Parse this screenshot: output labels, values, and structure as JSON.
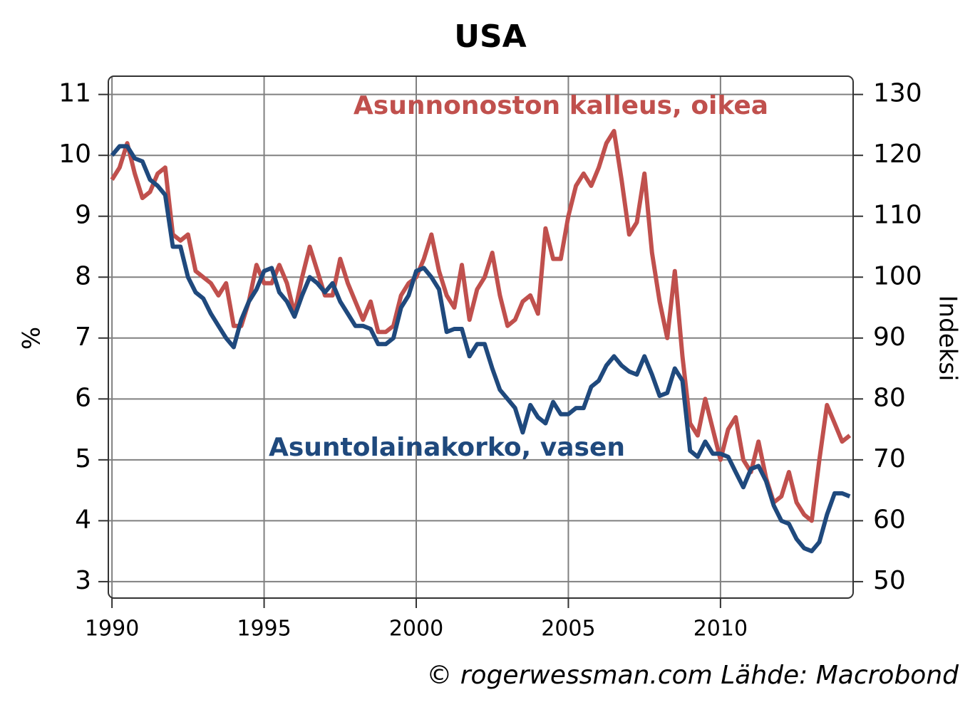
{
  "chart_data": {
    "type": "line",
    "title": "USA",
    "ylabel": "%",
    "y2label": "Indeksi",
    "source": "© rogerwessman.com Lähde: Macrobond",
    "x": [
      1990,
      1990.25,
      1990.5,
      1990.75,
      1991,
      1991.25,
      1991.5,
      1991.75,
      1992,
      1992.25,
      1992.5,
      1992.75,
      1993,
      1993.25,
      1993.5,
      1993.75,
      1994,
      1994.25,
      1994.5,
      1994.75,
      1995,
      1995.25,
      1995.5,
      1995.75,
      1996,
      1996.25,
      1996.5,
      1996.75,
      1997,
      1997.25,
      1997.5,
      1997.75,
      1998,
      1998.25,
      1998.5,
      1998.75,
      1999,
      1999.25,
      1999.5,
      1999.75,
      2000,
      2000.25,
      2000.5,
      2000.75,
      2001,
      2001.25,
      2001.5,
      2001.75,
      2002,
      2002.25,
      2002.5,
      2002.75,
      2003,
      2003.25,
      2003.5,
      2003.75,
      2004,
      2004.25,
      2004.5,
      2004.75,
      2005,
      2005.25,
      2005.5,
      2005.75,
      2006,
      2006.25,
      2006.5,
      2006.75,
      2007,
      2007.25,
      2007.5,
      2007.75,
      2008,
      2008.25,
      2008.5,
      2008.75,
      2009,
      2009.25,
      2009.5,
      2009.75,
      2010,
      2010.25,
      2010.5,
      2010.75,
      2011,
      2011.25,
      2011.5,
      2011.75,
      2012,
      2012.25,
      2012.5,
      2012.75,
      2013,
      2013.25,
      2013.5,
      2013.75,
      2014,
      2014.25
    ],
    "series": [
      {
        "name": "Asuntolainakorko, vasen",
        "color": "#1f497d",
        "axis": "y",
        "values": [
          10.0,
          10.15,
          10.15,
          9.95,
          9.9,
          9.6,
          9.5,
          9.35,
          8.5,
          8.5,
          8.0,
          7.75,
          7.65,
          7.4,
          7.2,
          7.0,
          6.85,
          7.3,
          7.6,
          7.8,
          8.1,
          8.15,
          7.75,
          7.6,
          7.35,
          7.7,
          8.0,
          7.9,
          7.75,
          7.9,
          7.6,
          7.4,
          7.2,
          7.2,
          7.15,
          6.9,
          6.9,
          7.0,
          7.5,
          7.7,
          8.1,
          8.15,
          8.0,
          7.8,
          7.1,
          7.15,
          7.15,
          6.7,
          6.9,
          6.9,
          6.5,
          6.15,
          6.0,
          5.85,
          5.45,
          5.9,
          5.7,
          5.6,
          5.95,
          5.75,
          5.75,
          5.85,
          5.85,
          6.2,
          6.3,
          6.55,
          6.7,
          6.55,
          6.45,
          6.4,
          6.7,
          6.4,
          6.05,
          6.1,
          6.5,
          6.3,
          5.15,
          5.05,
          5.3,
          5.1,
          5.1,
          5.05,
          4.8,
          4.55,
          4.85,
          4.9,
          4.65,
          4.25,
          4.0,
          3.95,
          3.7,
          3.55,
          3.5,
          3.65,
          4.1,
          4.45,
          4.45,
          4.4
        ]
      },
      {
        "name": "Asunnonoston kalleus, oikea",
        "color": "#c0504d",
        "axis": "y2",
        "values": [
          116,
          118,
          122,
          117,
          113,
          114,
          117,
          118,
          107,
          106,
          107,
          101,
          100,
          99,
          97,
          99,
          92,
          92,
          96,
          102,
          99,
          99,
          102,
          99,
          94,
          100,
          105,
          101,
          97,
          97,
          103,
          99,
          96,
          93,
          96,
          91,
          91,
          92,
          97,
          99,
          100,
          103,
          107,
          101,
          97,
          95,
          102,
          93,
          98,
          100,
          104,
          97,
          92,
          93,
          96,
          97,
          94,
          108,
          103,
          103,
          110,
          115,
          117,
          115,
          118,
          122,
          124,
          116,
          107,
          109,
          117,
          104,
          96,
          90,
          101,
          87,
          76,
          74,
          80,
          75,
          70,
          75,
          77,
          70,
          68,
          73,
          67,
          63,
          64,
          68,
          63,
          61,
          60,
          70,
          79,
          76,
          73,
          74
        ]
      }
    ],
    "xlim": [
      1989.88,
      2014.36
    ],
    "xticks": [
      1990,
      1995,
      2000,
      2005,
      2010
    ],
    "ylim": [
      2.73,
      11.3
    ],
    "yticks": [
      3,
      4,
      5,
      6,
      7,
      8,
      9,
      10,
      11
    ],
    "y2lim": [
      47.3,
      133.0
    ],
    "y2ticks": [
      50,
      60,
      70,
      80,
      90,
      100,
      110,
      120,
      130
    ],
    "grid": true
  }
}
